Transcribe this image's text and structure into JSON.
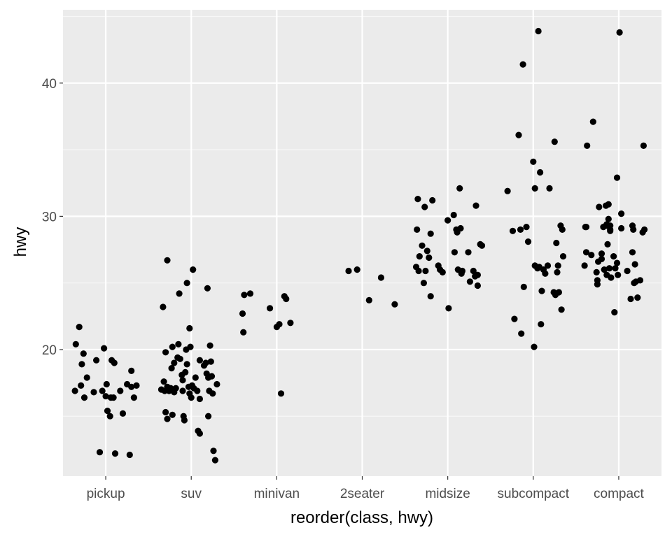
{
  "chart_data": {
    "type": "scatter",
    "xlabel": "reorder(class, hwy)",
    "ylabel": "hwy",
    "categories": [
      "pickup",
      "suv",
      "minivan",
      "2seater",
      "midsize",
      "subcompact",
      "compact"
    ],
    "ylim": [
      10.5,
      45.5
    ],
    "yticks": [
      20,
      30,
      40
    ],
    "grid": true,
    "colors": {
      "panel": "#ebebeb",
      "grid_major": "#ffffff",
      "grid_minor": "#f7f7f7",
      "point": "#000000"
    },
    "series": [
      {
        "category": "pickup",
        "points": [
          [
            -0.36,
            16.9
          ],
          [
            -0.35,
            20.4
          ],
          [
            -0.31,
            21.7
          ],
          [
            -0.29,
            17.3
          ],
          [
            -0.28,
            18.9
          ],
          [
            -0.26,
            19.7
          ],
          [
            -0.25,
            16.4
          ],
          [
            -0.22,
            17.9
          ],
          [
            -0.14,
            16.8
          ],
          [
            -0.11,
            19.2
          ],
          [
            -0.07,
            12.3
          ],
          [
            -0.04,
            16.9
          ],
          [
            -0.02,
            20.1
          ],
          [
            0.0,
            16.5
          ],
          [
            0.01,
            17.4
          ],
          [
            0.02,
            15.4
          ],
          [
            0.05,
            15.0
          ],
          [
            0.06,
            16.4
          ],
          [
            0.07,
            19.2
          ],
          [
            0.09,
            16.4
          ],
          [
            0.1,
            19.0
          ],
          [
            0.11,
            12.2
          ],
          [
            0.17,
            16.9
          ],
          [
            0.2,
            15.2
          ],
          [
            0.25,
            17.4
          ],
          [
            0.28,
            12.1
          ],
          [
            0.3,
            18.4
          ],
          [
            0.3,
            17.2
          ],
          [
            0.33,
            16.4
          ],
          [
            0.36,
            17.3
          ]
        ]
      },
      {
        "category": "suv",
        "points": [
          [
            -0.35,
            17.0
          ],
          [
            -0.33,
            23.2
          ],
          [
            -0.32,
            17.6
          ],
          [
            -0.31,
            16.9
          ],
          [
            -0.3,
            19.8
          ],
          [
            -0.3,
            15.3
          ],
          [
            -0.28,
            17.2
          ],
          [
            -0.28,
            26.7
          ],
          [
            -0.28,
            14.8
          ],
          [
            -0.26,
            16.9
          ],
          [
            -0.24,
            17.1
          ],
          [
            -0.23,
            18.6
          ],
          [
            -0.22,
            20.2
          ],
          [
            -0.22,
            15.1
          ],
          [
            -0.2,
            19.0
          ],
          [
            -0.2,
            16.8
          ],
          [
            -0.18,
            17.1
          ],
          [
            -0.16,
            19.4
          ],
          [
            -0.15,
            20.4
          ],
          [
            -0.14,
            24.2
          ],
          [
            -0.13,
            19.3
          ],
          [
            -0.11,
            18.1
          ],
          [
            -0.1,
            17.7
          ],
          [
            -0.1,
            16.9
          ],
          [
            -0.09,
            15.0
          ],
          [
            -0.08,
            14.7
          ],
          [
            -0.07,
            18.3
          ],
          [
            -0.06,
            20.0
          ],
          [
            -0.05,
            25.0
          ],
          [
            -0.05,
            18.9
          ],
          [
            -0.03,
            17.2
          ],
          [
            -0.02,
            16.7
          ],
          [
            -0.02,
            21.6
          ],
          [
            -0.01,
            20.2
          ],
          [
            0.0,
            16.4
          ],
          [
            0.01,
            17.3
          ],
          [
            0.02,
            26.0
          ],
          [
            0.03,
            17.1
          ],
          [
            0.05,
            17.9
          ],
          [
            0.07,
            16.9
          ],
          [
            0.08,
            13.9
          ],
          [
            0.1,
            16.3
          ],
          [
            0.1,
            19.2
          ],
          [
            0.1,
            13.7
          ],
          [
            0.15,
            18.8
          ],
          [
            0.17,
            19.0
          ],
          [
            0.18,
            18.2
          ],
          [
            0.19,
            24.6
          ],
          [
            0.2,
            15.0
          ],
          [
            0.2,
            17.9
          ],
          [
            0.21,
            16.9
          ],
          [
            0.22,
            20.3
          ],
          [
            0.23,
            19.1
          ],
          [
            0.24,
            18.0
          ],
          [
            0.25,
            16.7
          ],
          [
            0.26,
            12.4
          ],
          [
            0.28,
            11.7
          ],
          [
            0.3,
            17.4
          ]
        ]
      },
      {
        "category": "minivan",
        "points": [
          [
            -0.4,
            22.7
          ],
          [
            -0.39,
            21.3
          ],
          [
            -0.38,
            24.1
          ],
          [
            -0.31,
            24.2
          ],
          [
            -0.08,
            23.1
          ],
          [
            0.0,
            21.7
          ],
          [
            0.03,
            21.9
          ],
          [
            0.05,
            16.7
          ],
          [
            0.09,
            24.0
          ],
          [
            0.11,
            23.8
          ],
          [
            0.16,
            22.0
          ]
        ]
      },
      {
        "category": "2seater",
        "points": [
          [
            -0.16,
            25.9
          ],
          [
            -0.06,
            26.0
          ],
          [
            0.08,
            23.7
          ],
          [
            0.22,
            25.4
          ],
          [
            0.38,
            23.4
          ]
        ]
      },
      {
        "category": "midsize",
        "points": [
          [
            -0.37,
            26.2
          ],
          [
            -0.36,
            29.0
          ],
          [
            -0.35,
            31.3
          ],
          [
            -0.34,
            25.9
          ],
          [
            -0.33,
            27.0
          ],
          [
            -0.3,
            27.8
          ],
          [
            -0.28,
            25.0
          ],
          [
            -0.27,
            30.7
          ],
          [
            -0.26,
            25.9
          ],
          [
            -0.24,
            27.4
          ],
          [
            -0.22,
            26.9
          ],
          [
            -0.2,
            24.0
          ],
          [
            -0.2,
            28.7
          ],
          [
            -0.18,
            31.2
          ],
          [
            -0.11,
            26.3
          ],
          [
            -0.09,
            26.0
          ],
          [
            -0.06,
            25.8
          ],
          [
            0.0,
            29.7
          ],
          [
            0.01,
            23.1
          ],
          [
            0.07,
            30.1
          ],
          [
            0.08,
            27.3
          ],
          [
            0.1,
            29.0
          ],
          [
            0.11,
            28.8
          ],
          [
            0.12,
            26.0
          ],
          [
            0.14,
            32.1
          ],
          [
            0.15,
            29.1
          ],
          [
            0.16,
            25.7
          ],
          [
            0.17,
            25.9
          ],
          [
            0.24,
            27.3
          ],
          [
            0.26,
            25.1
          ],
          [
            0.3,
            25.9
          ],
          [
            0.32,
            25.5
          ],
          [
            0.33,
            30.8
          ],
          [
            0.35,
            24.8
          ],
          [
            0.35,
            25.6
          ],
          [
            0.38,
            27.9
          ],
          [
            0.4,
            27.8
          ]
        ]
      },
      {
        "category": "subcompact",
        "points": [
          [
            -0.3,
            31.9
          ],
          [
            -0.24,
            28.9
          ],
          [
            -0.22,
            22.3
          ],
          [
            -0.17,
            36.1
          ],
          [
            -0.15,
            29.0
          ],
          [
            -0.14,
            21.2
          ],
          [
            -0.12,
            41.4
          ],
          [
            -0.11,
            24.7
          ],
          [
            -0.08,
            29.2
          ],
          [
            -0.06,
            28.1
          ],
          [
            0.0,
            34.1
          ],
          [
            0.01,
            20.2
          ],
          [
            0.02,
            32.1
          ],
          [
            0.02,
            26.3
          ],
          [
            0.05,
            26.1
          ],
          [
            0.06,
            43.9
          ],
          [
            0.07,
            26.2
          ],
          [
            0.08,
            33.3
          ],
          [
            0.09,
            21.9
          ],
          [
            0.1,
            24.4
          ],
          [
            0.12,
            26.0
          ],
          [
            0.14,
            25.7
          ],
          [
            0.17,
            26.3
          ],
          [
            0.19,
            32.1
          ],
          [
            0.24,
            24.3
          ],
          [
            0.25,
            35.6
          ],
          [
            0.26,
            24.1
          ],
          [
            0.27,
            28.0
          ],
          [
            0.28,
            25.8
          ],
          [
            0.29,
            26.3
          ],
          [
            0.3,
            24.3
          ],
          [
            0.32,
            29.3
          ],
          [
            0.33,
            23.0
          ],
          [
            0.34,
            29.0
          ],
          [
            0.35,
            27.0
          ]
        ]
      },
      {
        "category": "compact",
        "points": [
          [
            -0.4,
            26.3
          ],
          [
            -0.39,
            29.2
          ],
          [
            -0.38,
            29.2
          ],
          [
            -0.38,
            27.3
          ],
          [
            -0.37,
            35.3
          ],
          [
            -0.32,
            27.1
          ],
          [
            -0.3,
            37.1
          ],
          [
            -0.26,
            25.8
          ],
          [
            -0.25,
            24.9
          ],
          [
            -0.25,
            25.2
          ],
          [
            -0.24,
            26.6
          ],
          [
            -0.23,
            30.7
          ],
          [
            -0.2,
            26.8
          ],
          [
            -0.2,
            27.2
          ],
          [
            -0.18,
            29.2
          ],
          [
            -0.17,
            26.0
          ],
          [
            -0.15,
            30.8
          ],
          [
            -0.15,
            29.3
          ],
          [
            -0.14,
            25.6
          ],
          [
            -0.14,
            29.4
          ],
          [
            -0.13,
            27.9
          ],
          [
            -0.12,
            30.9
          ],
          [
            -0.12,
            29.8
          ],
          [
            -0.11,
            26.1
          ],
          [
            -0.1,
            28.9
          ],
          [
            -0.1,
            29.3
          ],
          [
            -0.1,
            29.0
          ],
          [
            -0.09,
            25.4
          ],
          [
            -0.06,
            27.0
          ],
          [
            -0.05,
            22.8
          ],
          [
            -0.04,
            26.1
          ],
          [
            -0.02,
            32.9
          ],
          [
            -0.02,
            26.5
          ],
          [
            -0.01,
            25.6
          ],
          [
            0.01,
            43.8
          ],
          [
            0.03,
            30.2
          ],
          [
            0.03,
            29.1
          ],
          [
            0.1,
            25.9
          ],
          [
            0.14,
            23.8
          ],
          [
            0.16,
            29.3
          ],
          [
            0.16,
            27.3
          ],
          [
            0.17,
            29.0
          ],
          [
            0.18,
            25.0
          ],
          [
            0.19,
            26.4
          ],
          [
            0.2,
            25.1
          ],
          [
            0.22,
            23.9
          ],
          [
            0.25,
            25.2
          ],
          [
            0.28,
            28.8
          ],
          [
            0.29,
            35.3
          ],
          [
            0.3,
            29.0
          ]
        ]
      }
    ]
  }
}
